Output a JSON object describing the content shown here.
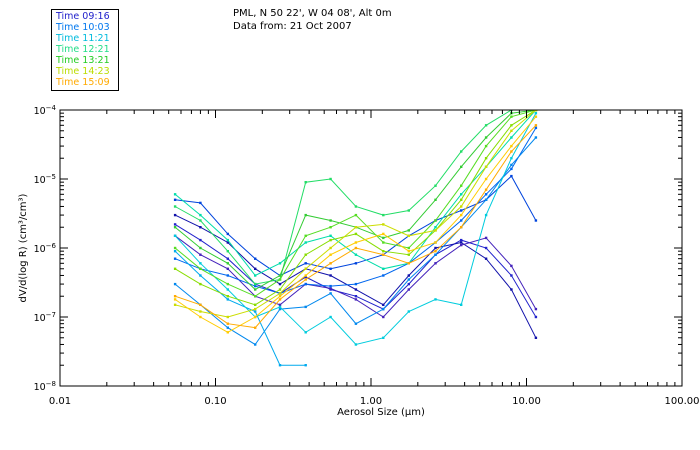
{
  "header": {
    "line1": "PML, N 50 22', W 04 08', Alt 0m",
    "line2": "Data from: 21 Oct 2007"
  },
  "legend": [
    {
      "label": "Time 09:16",
      "color": "#2222cc"
    },
    {
      "label": "Time 10:03",
      "color": "#0077ee"
    },
    {
      "label": "Time 11:21",
      "color": "#00bbdd"
    },
    {
      "label": "Time 12:21",
      "color": "#22dd88"
    },
    {
      "label": "Time 13:21",
      "color": "#22cc22"
    },
    {
      "label": "Time 14:23",
      "color": "#bbdd00"
    },
    {
      "label": "Time 15:09",
      "color": "#ffaa00"
    }
  ],
  "chart_data": {
    "type": "line",
    "xlabel": "Aerosol Size (μm)",
    "ylabel": "dV/d(log R) (cm³/cm³)",
    "xscale": "log",
    "yscale": "log",
    "xlim": [
      0.01,
      100
    ],
    "ylim": [
      1e-08,
      0.0001
    ],
    "xticks": [
      {
        "v": 0.01,
        "label": "0.01"
      },
      {
        "v": 0.1,
        "label": "0.10"
      },
      {
        "v": 1,
        "label": "1.00"
      },
      {
        "v": 10,
        "label": "10.00"
      },
      {
        "v": 100,
        "label": "100.00"
      }
    ],
    "yticks": [
      {
        "v": 1e-08,
        "mant": "10",
        "exp": "−8"
      },
      {
        "v": 1e-07,
        "mant": "10",
        "exp": "−7"
      },
      {
        "v": 1e-06,
        "mant": "10",
        "exp": "−6"
      },
      {
        "v": 1e-05,
        "mant": "10",
        "exp": "−5"
      },
      {
        "v": 0.0001,
        "mant": "10",
        "exp": "−4"
      }
    ],
    "x": [
      0.055,
      0.08,
      0.12,
      0.18,
      0.26,
      0.38,
      0.55,
      0.8,
      1.2,
      1.75,
      2.6,
      3.8,
      5.5,
      8.0,
      11.5
    ],
    "series": [
      {
        "color": "#2222cc",
        "values": [
          2.2e-06,
          1.3e-06,
          7e-07,
          3e-07,
          2.2e-07,
          3.8e-07,
          2.5e-07,
          2e-07,
          1.3e-07,
          3e-07,
          8e-07,
          1.3e-06,
          1e-06,
          4e-07,
          1e-07
        ]
      },
      {
        "color": "#1111aa",
        "values": [
          3e-06,
          2e-06,
          1.2e-06,
          5e-07,
          3e-07,
          5e-07,
          4e-07,
          2.5e-07,
          1.5e-07,
          4e-07,
          1e-06,
          1.2e-06,
          7e-07,
          2.5e-07,
          5e-08
        ]
      },
      {
        "color": "#4422bb",
        "values": [
          1.5e-06,
          8e-07,
          5e-07,
          2e-07,
          1.5e-07,
          3e-07,
          2.6e-07,
          1.8e-07,
          1e-07,
          2.5e-07,
          6e-07,
          1.1e-06,
          1.4e-06,
          5.5e-07,
          1.3e-07
        ]
      },
      {
        "color": "#0044dd",
        "values": [
          5e-06,
          4.5e-06,
          1.6e-06,
          7e-07,
          4e-07,
          6e-07,
          5e-07,
          6e-07,
          8e-07,
          1.5e-06,
          2.5e-06,
          3.5e-06,
          5e-06,
          1.1e-05,
          2.5e-06
        ]
      },
      {
        "color": "#0066ee",
        "values": [
          7e-07,
          5e-07,
          4e-07,
          2.8e-07,
          2.2e-07,
          3e-07,
          2.8e-07,
          3e-07,
          4e-07,
          6e-07,
          1.2e-06,
          2.5e-06,
          6e-06,
          1.4e-05,
          5.5e-05
        ]
      },
      {
        "color": "#0088ee",
        "values": [
          3e-07,
          1.5e-07,
          7e-08,
          4e-08,
          1.3e-07,
          1.4e-07,
          2.2e-07,
          8e-08,
          1.3e-07,
          3.5e-07,
          8e-07,
          2e-06,
          5e-06,
          1.6e-05,
          4e-05
        ]
      },
      {
        "color": "#00aaee",
        "values": [
          9e-07,
          4e-07,
          1.8e-07,
          1.2e-07,
          2e-08,
          2e-08,
          null,
          null,
          null,
          null,
          null,
          null,
          null,
          null,
          null
        ]
      },
      {
        "color": "#00ccdd",
        "values": [
          1.5e-06,
          6e-07,
          2.5e-07,
          1e-07,
          1.4e-07,
          6e-08,
          1e-07,
          4e-08,
          5e-08,
          1.2e-07,
          1.8e-07,
          1.5e-07,
          3e-06,
          2e-05,
          9e-05
        ]
      },
      {
        "color": "#00ddaa",
        "values": [
          6e-06,
          3e-06,
          1.3e-06,
          4e-07,
          6e-07,
          1.2e-06,
          1.5e-06,
          8e-07,
          5e-07,
          6e-07,
          2e-06,
          6e-06,
          1.5e-05,
          4e-05,
          0.0001
        ]
      },
      {
        "color": "#22dd66",
        "values": [
          4e-06,
          2.5e-06,
          9e-07,
          3e-07,
          3.5e-07,
          9e-06,
          1e-05,
          4e-06,
          3e-06,
          3.5e-06,
          8e-06,
          2.5e-05,
          6e-05,
          0.0001,
          0.0001
        ]
      },
      {
        "color": "#33cc33",
        "values": [
          2e-06,
          1e-06,
          6e-07,
          2.5e-07,
          4e-07,
          3e-06,
          2.5e-06,
          2e-06,
          1.4e-06,
          1.8e-06,
          5e-06,
          1.5e-05,
          4e-05,
          9e-05,
          0.0001
        ]
      },
      {
        "color": "#55dd22",
        "values": [
          1e-06,
          5e-07,
          3e-07,
          2e-07,
          3.5e-07,
          1.5e-06,
          2e-06,
          3e-06,
          1.2e-06,
          1e-06,
          2.5e-06,
          8e-06,
          3e-05,
          8e-05,
          0.0001
        ]
      },
      {
        "color": "#88dd00",
        "values": [
          5e-07,
          3e-07,
          2e-07,
          1.5e-07,
          2.5e-07,
          8e-07,
          1.3e-06,
          1.6e-06,
          9e-07,
          8e-07,
          1.8e-06,
          5e-06,
          2e-05,
          6e-05,
          0.0001
        ]
      },
      {
        "color": "#ccdd00",
        "values": [
          1.5e-07,
          1.2e-07,
          1e-07,
          1.3e-07,
          2.2e-07,
          5e-07,
          1e-06,
          2e-06,
          2.2e-06,
          1.5e-06,
          1.8e-06,
          4e-06,
          1.5e-05,
          5e-05,
          0.0001
        ]
      },
      {
        "color": "#ffcc00",
        "values": [
          1.8e-07,
          1e-07,
          6e-08,
          1e-07,
          2e-07,
          4e-07,
          8e-07,
          1.2e-06,
          1.6e-06,
          9e-07,
          1.2e-06,
          3e-06,
          1e-05,
          3e-05,
          8e-05
        ]
      },
      {
        "color": "#ffaa00",
        "values": [
          2e-07,
          1.5e-07,
          8e-08,
          7e-08,
          1.8e-07,
          3.5e-07,
          6e-07,
          1e-06,
          8e-07,
          6e-07,
          9e-07,
          2e-06,
          7e-06,
          2.5e-05,
          6e-05
        ]
      }
    ]
  }
}
